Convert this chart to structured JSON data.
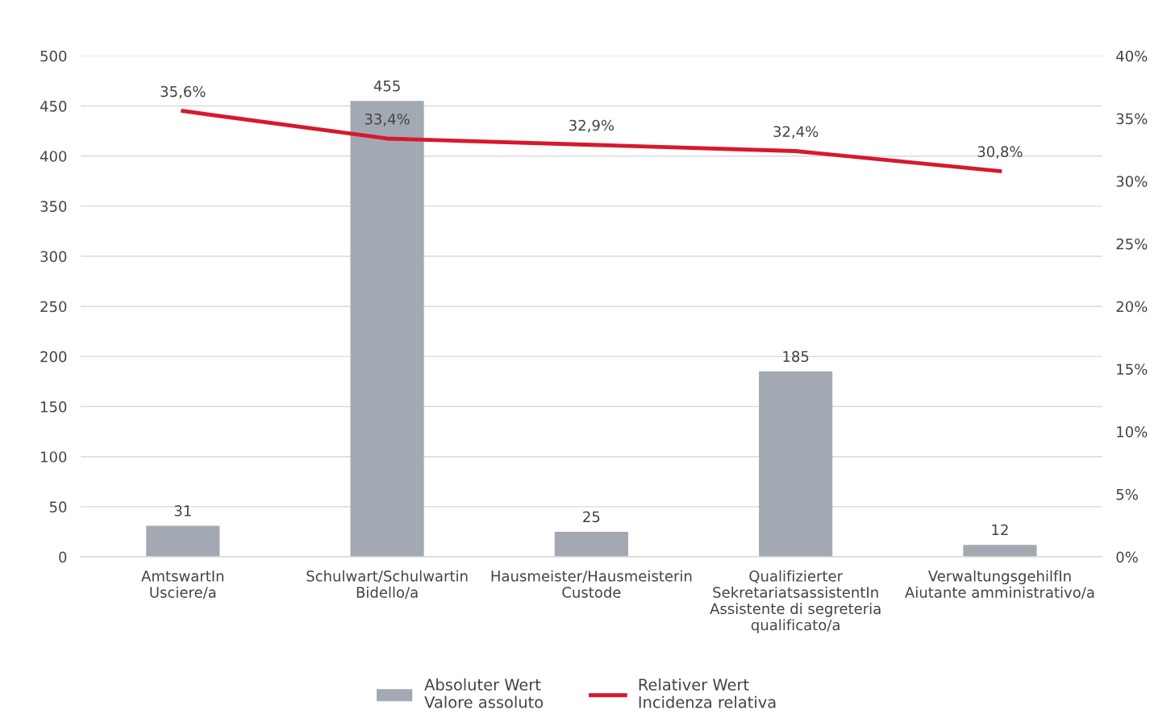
{
  "chart_data": {
    "type": "bar",
    "categories": [
      "AmtswartIn\nUsciere/a",
      "Schulwart/Schulwartin\nBidello/a",
      "Hausmeister/Hausmeisterin\nCustode",
      "Qualifizierter\nSekretariatsassistentIn\nAssistente di segreteria\nqualificato/a",
      "VerwaltungsgehilfIn\nAiutante amministrativo/a"
    ],
    "series": [
      {
        "name": "Absoluter Wert\nValore assoluto",
        "color": "#a2a9b3",
        "values": [
          31,
          455,
          25,
          185,
          12
        ],
        "value_labels": [
          "31",
          "455",
          "25",
          "185",
          "12"
        ]
      },
      {
        "name": "Relativer Wert\nIncidenza relativa",
        "type": "line",
        "axis": "y2",
        "color": "#d7192a",
        "values": [
          35.6,
          33.4,
          32.9,
          32.4,
          30.8
        ],
        "value_labels": [
          "35,6%",
          "33,4%",
          "32,9%",
          "32,4%",
          "30,8%"
        ]
      }
    ],
    "ylim": [
      0,
      500
    ],
    "yticks": [
      0,
      50,
      100,
      150,
      200,
      250,
      300,
      350,
      400,
      450,
      500
    ],
    "y2lim": [
      0,
      40
    ],
    "y2ticks": [
      {
        "value": 0,
        "label": "0%"
      },
      {
        "value": 5,
        "label": "5%"
      },
      {
        "value": 10,
        "label": "10%"
      },
      {
        "value": 15,
        "label": "15%"
      },
      {
        "value": 20,
        "label": "20%"
      },
      {
        "value": 25,
        "label": "25%"
      },
      {
        "value": 30,
        "label": "30%"
      },
      {
        "value": 35,
        "label": "35%"
      },
      {
        "value": 40,
        "label": "40%"
      }
    ],
    "grid": "y",
    "legend": "bottom",
    "marker": "none",
    "line_style": "solid"
  }
}
